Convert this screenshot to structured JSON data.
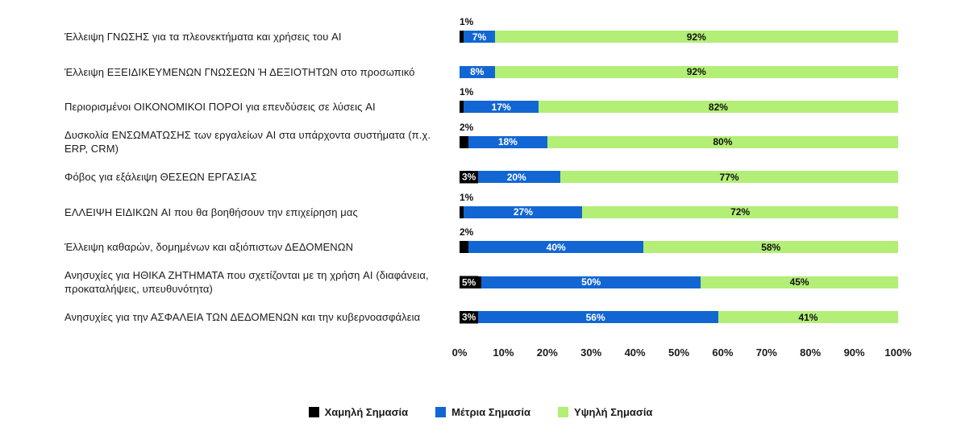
{
  "chart_data": {
    "type": "bar",
    "orientation": "horizontal",
    "stacked": true,
    "title": "",
    "xlabel": "",
    "ylabel": "",
    "xlim": [
      0,
      100
    ],
    "grid": false,
    "legend_position": "bottom-center",
    "value_suffix": "%",
    "categories": [
      "Έλλειψη ΓΝΩΣΗΣ για τα πλεονεκτήματα και χρήσεις του AI",
      "Έλλειψη ΕΞΕΙΔΙΚΕΥΜΕΝΩΝ ΓΝΩΣΕΩΝ Ή ΔΕΞΙΟΤΗΤΩΝ στο προσωπικό",
      "Περιορισμένοι ΟΙΚΟΝΟΜΙΚΟΙ ΠΟΡΟΙ για επενδύσεις σε λύσεις AI",
      "Δυσκολία ΕΝΣΩΜΑΤΩΣΗΣ των εργαλείων AI στα υπάρχοντα συστήματα (π.χ. ERP, CRM)",
      "Φόβος για εξάλειψη ΘΕΣΕΩΝ ΕΡΓΑΣΙΑΣ",
      "ΕΛΛΕΙΨΗ ΕΙΔΙΚΩΝ AI που θα βοηθήσουν την επιχείρηση μας",
      "Έλλειψη καθαρών, δομημένων και αξιόπιστων ΔΕΔΟΜΕΝΩΝ",
      "Ανησυχίες για ΗΘΙΚΑ ΖΗΤΗΜΑΤΑ που σχετίζονται με τη χρήση AI (διαφάνεια, προκαταλήψεις, υπευθυνότητα)",
      "Ανησυχίες για την ΑΣΦΑΛΕΙΑ ΤΩΝ ΔΕΔΟΜΕΝΩΝ και την κυβερνοασφάλεια"
    ],
    "series": [
      {
        "name": "Χαμηλή Σημασία",
        "key": "low",
        "color": "#000000",
        "values": [
          1,
          0,
          1,
          2,
          3,
          1,
          2,
          5,
          3
        ]
      },
      {
        "name": "Μέτρια Σημασία",
        "key": "mid",
        "color": "#1266d3",
        "values": [
          7,
          8,
          17,
          18,
          20,
          27,
          40,
          50,
          56
        ]
      },
      {
        "name": "Υψηλή Σημασία",
        "key": "high",
        "color": "#b3ee76",
        "values": [
          92,
          92,
          82,
          80,
          77,
          72,
          58,
          45,
          41
        ]
      }
    ],
    "x_ticks": [
      "0%",
      "10%",
      "20%",
      "30%",
      "40%",
      "50%",
      "60%",
      "70%",
      "80%",
      "90%",
      "100%"
    ]
  },
  "colors": {
    "low": "#000000",
    "mid": "#1266d3",
    "high": "#b3ee76",
    "background": "#ffffff",
    "text": "#1a1a1a"
  }
}
